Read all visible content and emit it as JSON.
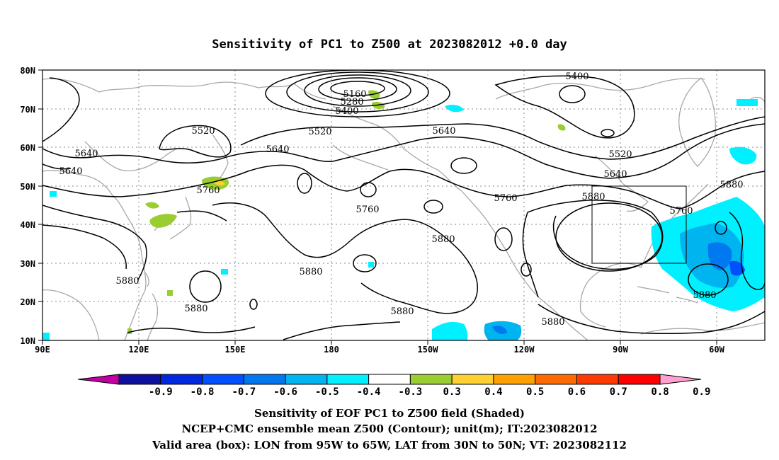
{
  "title": "Sensitivity of PC1 to Z500 at 2023082012 +0.0 day",
  "map": {
    "lat_labels": [
      "80N",
      "70N",
      "60N",
      "50N",
      "40N",
      "30N",
      "20N",
      "10N"
    ],
    "lon_labels": [
      "90E",
      "120E",
      "150E",
      "180",
      "150W",
      "120W",
      "90W",
      "60W"
    ],
    "contour_labels": [
      "5400",
      "5160",
      "5280",
      "5400",
      "5520",
      "5520",
      "5640",
      "5640",
      "5640",
      "5640",
      "5520",
      "5640",
      "5760",
      "5760",
      "5760",
      "5880",
      "5760",
      "5880",
      "5880",
      "5880",
      "5880",
      "5880",
      "5880",
      "5880",
      "5880"
    ],
    "valid_box": {
      "lon_range": [
        "95W",
        "65W"
      ],
      "lat_range": [
        "30N",
        "50N"
      ]
    }
  },
  "colorbar": {
    "labels": [
      "-0.9",
      "-0.8",
      "-0.7",
      "-0.6",
      "-0.5",
      "-0.4",
      "-0.3",
      "0.3",
      "0.4",
      "0.5",
      "0.6",
      "0.7",
      "0.8",
      "0.9"
    ],
    "colors": [
      "#1010a0",
      "#0028e0",
      "#0050ff",
      "#0078f0",
      "#00b4f0",
      "#00f0ff",
      "#ffffff",
      "#9acd32",
      "#ffd030",
      "#ffa000",
      "#ff6a00",
      "#ff3a00",
      "#ff0000"
    ],
    "left_arrow_color": "#c000a0",
    "right_arrow_color": "#ffa0d0"
  },
  "captions": [
    "Sensitivity of EOF PC1 to Z500 field (Shaded)",
    "NCEP+CMC ensemble mean Z500 (Contour); unit(m); IT:2023082012",
    "Valid area (box): LON from 95W to 65W, LAT from 30N to 50N; VT: 2023082112"
  ]
}
